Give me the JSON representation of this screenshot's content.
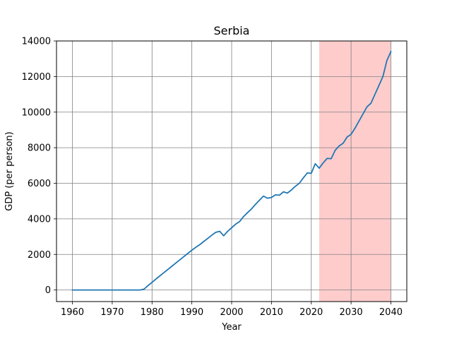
{
  "chart_data": {
    "type": "line",
    "title": "Serbia",
    "xlabel": "Year",
    "ylabel": "GDP (per person)",
    "xlim": [
      1956.0,
      2044.0
    ],
    "ylim": [
      -650,
      14000
    ],
    "xticks": [
      1960,
      1970,
      1980,
      1990,
      2000,
      2010,
      2020,
      2030,
      2040
    ],
    "yticks": [
      0,
      2000,
      4000,
      6000,
      8000,
      10000,
      12000,
      14000
    ],
    "grid": true,
    "line_color": "#1f77b4",
    "shaded_region": {
      "x_start": 2022,
      "x_end": 2040,
      "color": "#ffcccc"
    },
    "series": [
      {
        "x": [
          1960,
          1961,
          1962,
          1963,
          1964,
          1965,
          1966,
          1967,
          1968,
          1969,
          1970,
          1971,
          1972,
          1973,
          1974,
          1975,
          1976,
          1977,
          1978,
          1979,
          1980,
          1981,
          1982,
          1983,
          1984,
          1985,
          1986,
          1987,
          1988,
          1989,
          1990,
          1991,
          1992,
          1993,
          1994,
          1995,
          1996,
          1997,
          1998,
          1999,
          2000,
          2001,
          2002,
          2003,
          2004,
          2005,
          2006,
          2007,
          2008,
          2009,
          2010,
          2011,
          2012,
          2013,
          2014,
          2015,
          2016,
          2017,
          2018,
          2019,
          2020,
          2021,
          2022,
          2023,
          2024,
          2025,
          2026,
          2027,
          2028,
          2029,
          2030,
          2031,
          2032,
          2033,
          2034,
          2035,
          2036,
          2037,
          2038,
          2039,
          2040
        ],
        "values": [
          0,
          0,
          0,
          0,
          0,
          0,
          0,
          0,
          0,
          0,
          0,
          0,
          0,
          0,
          0,
          0,
          0,
          0,
          50,
          250,
          430,
          620,
          800,
          980,
          1160,
          1340,
          1520,
          1700,
          1880,
          2060,
          2240,
          2400,
          2550,
          2730,
          2900,
          3080,
          3240,
          3300,
          3050,
          3300,
          3500,
          3700,
          3850,
          4130,
          4350,
          4560,
          4820,
          5050,
          5280,
          5160,
          5200,
          5350,
          5330,
          5520,
          5450,
          5620,
          5830,
          6000,
          6300,
          6580,
          6560,
          7100,
          6850,
          7150,
          7400,
          7380,
          7850,
          8100,
          8250,
          8600,
          8750,
          9100,
          9500,
          9900,
          10300,
          10500,
          11000,
          11500,
          12000,
          12900,
          13400
        ]
      }
    ]
  }
}
